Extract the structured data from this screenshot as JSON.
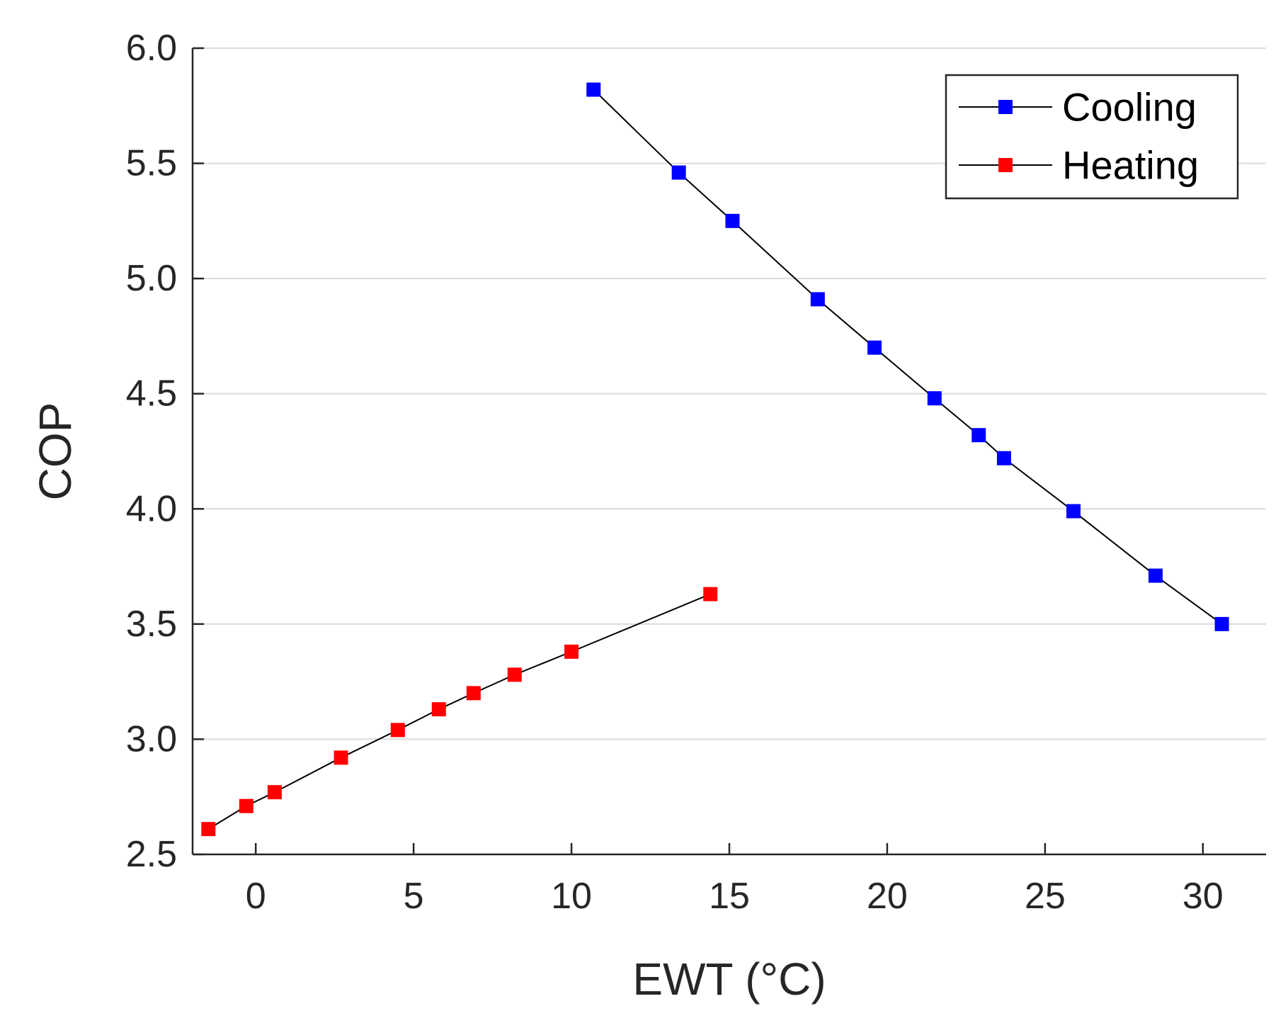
{
  "chart_data": {
    "type": "line",
    "title": "",
    "xlabel": "EWT (°C)",
    "ylabel": "COP",
    "xlim": [
      -2,
      32
    ],
    "ylim": [
      2.5,
      6.0
    ],
    "xticks": [
      0,
      5,
      10,
      15,
      20,
      25,
      30
    ],
    "xtick_labels": [
      "0",
      "5",
      "10",
      "15",
      "20",
      "25",
      "30"
    ],
    "yticks": [
      2.5,
      3.0,
      3.5,
      4.0,
      4.5,
      5.0,
      5.5,
      6.0
    ],
    "ytick_labels": [
      "2.5",
      "3.0",
      "3.5",
      "4.0",
      "4.5",
      "5.0",
      "5.5",
      "6.0"
    ],
    "grid": "horizontal",
    "legend_position": "top-right",
    "line_color": "#000000",
    "series": [
      {
        "name": "Cooling",
        "marker_color": "#0000ff",
        "x": [
          10.7,
          13.4,
          15.1,
          17.8,
          19.6,
          21.5,
          22.9,
          23.7,
          25.9,
          28.5,
          30.6
        ],
        "y": [
          5.82,
          5.46,
          5.25,
          4.91,
          4.7,
          4.48,
          4.32,
          4.22,
          3.99,
          3.71,
          3.5
        ]
      },
      {
        "name": "Heating",
        "marker_color": "#ff0000",
        "x": [
          -1.5,
          -0.3,
          0.6,
          2.7,
          4.5,
          5.8,
          6.9,
          8.2,
          10.0,
          14.4
        ],
        "y": [
          2.61,
          2.71,
          2.77,
          2.92,
          3.04,
          3.13,
          3.2,
          3.28,
          3.38,
          3.63
        ]
      }
    ]
  }
}
